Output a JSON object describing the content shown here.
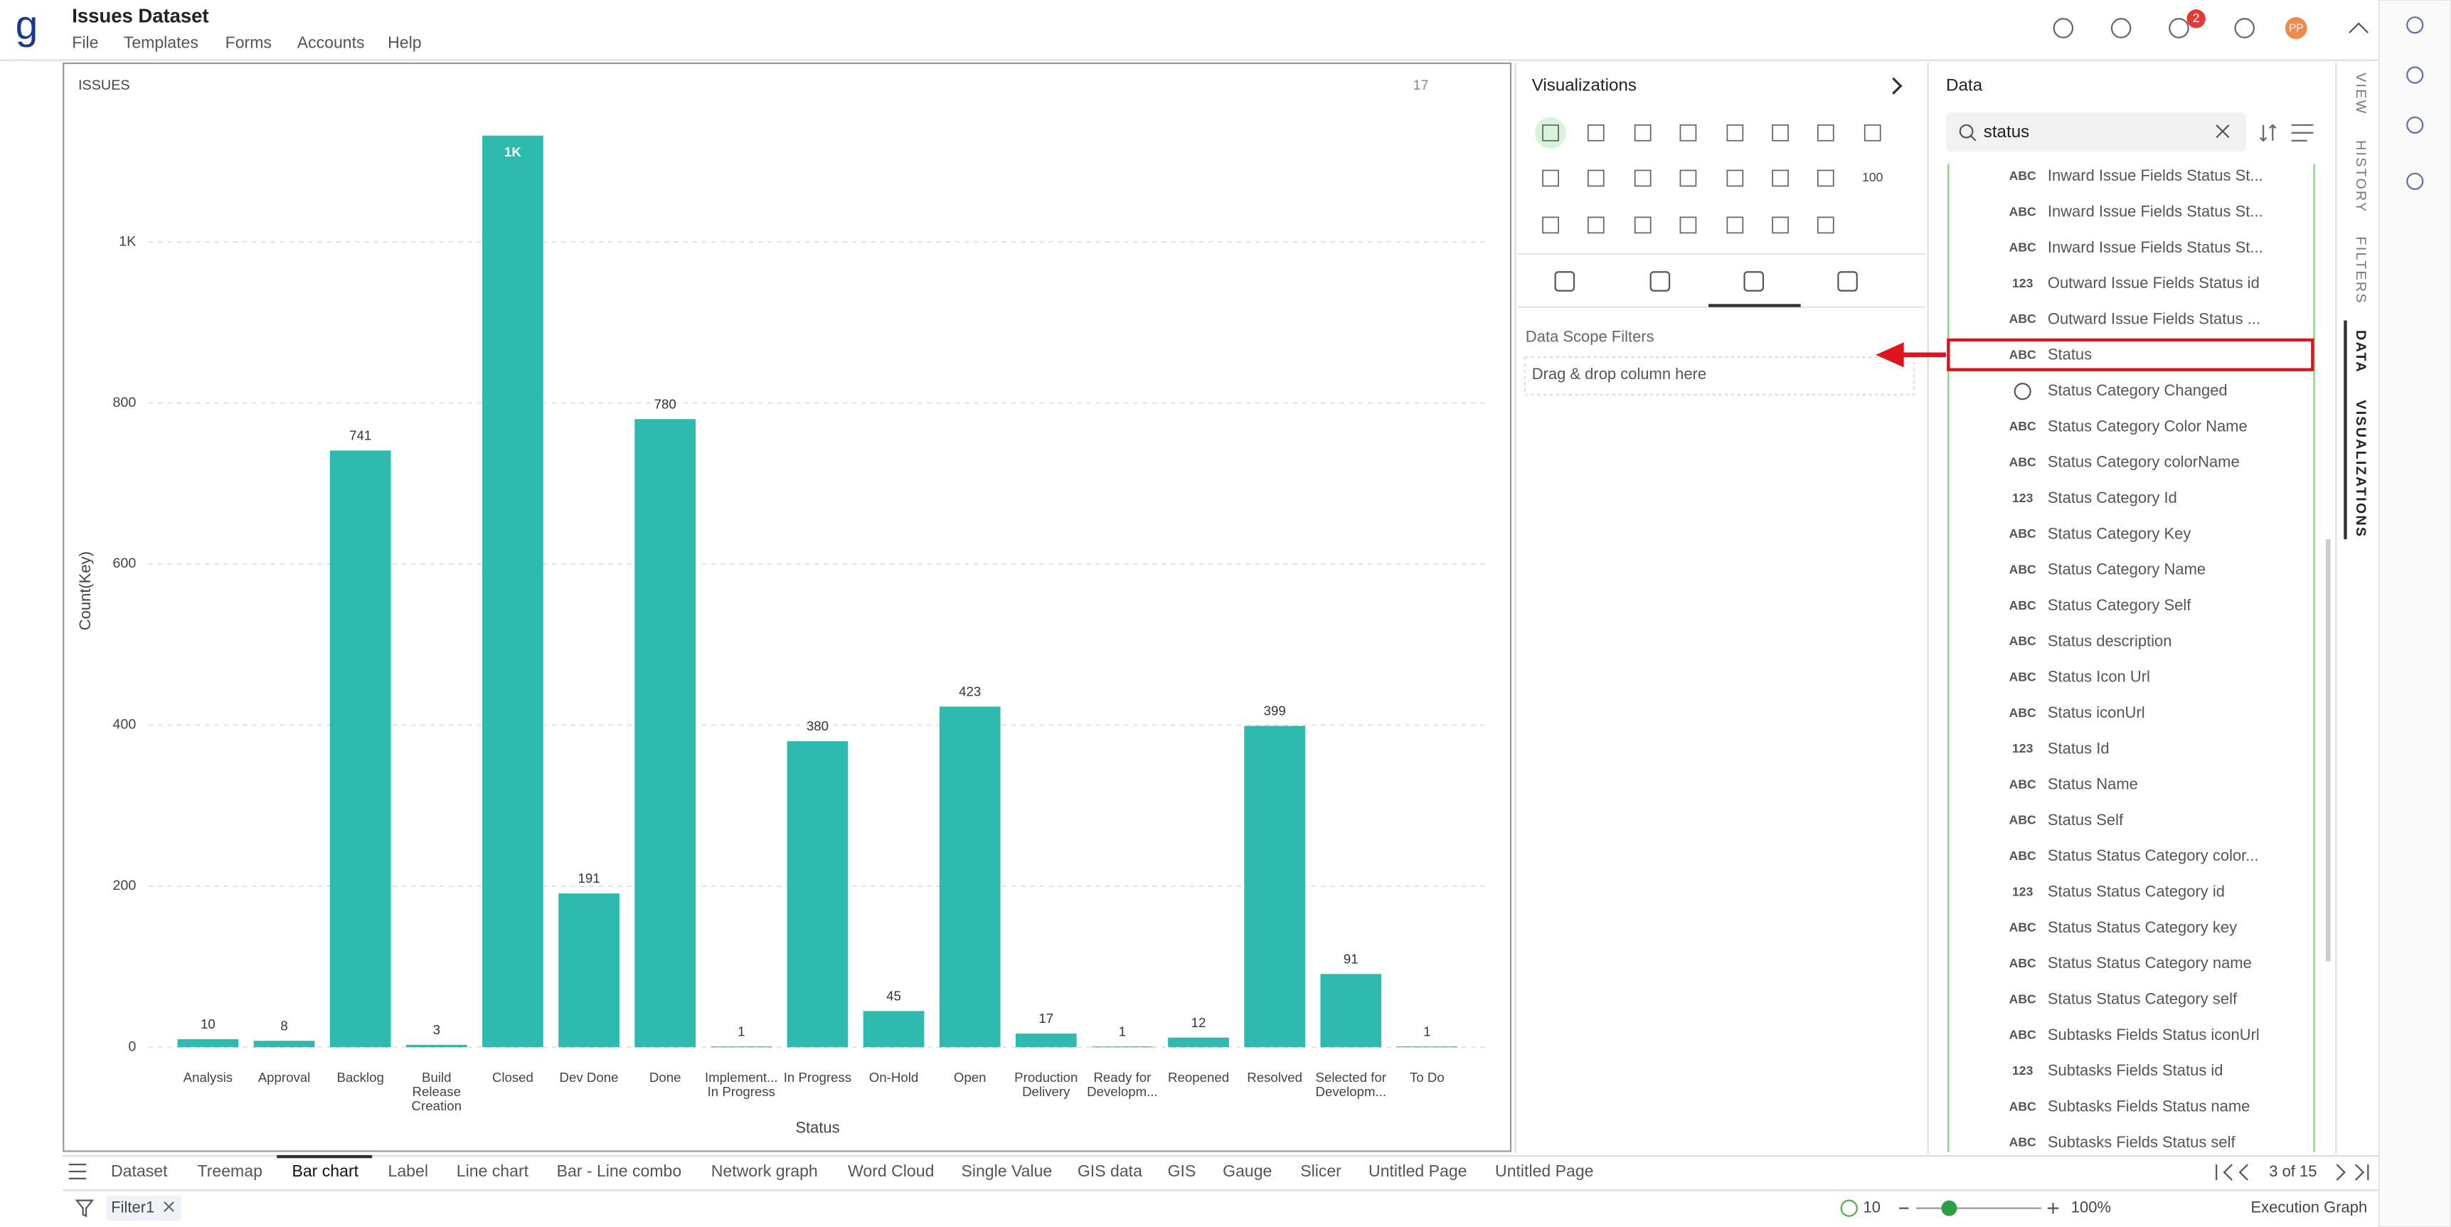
{
  "app": {
    "logo": "g",
    "title": "Issues Dataset",
    "menu": [
      "File",
      "Templates",
      "Forms",
      "Accounts",
      "Help"
    ],
    "notification_count": "2",
    "avatar": "PP"
  },
  "chart_panel": {
    "title": "ISSUES",
    "count": "17"
  },
  "chart_data": {
    "type": "bar",
    "x_label": "Status",
    "y_label": "Count(Key)",
    "color": "#2fbab0",
    "categories": [
      "Analysis",
      "Approval",
      "Backlog",
      "Build Release Creation",
      "Closed",
      "Dev Done",
      "Done",
      "Implement... In Progress",
      "In Progress",
      "On-Hold",
      "Open",
      "Production Delivery",
      "Ready for Developm...",
      "Reopened",
      "Resolved",
      "Selected for Developm...",
      "To Do"
    ],
    "values": [
      10,
      8,
      741,
      3,
      1132,
      191,
      780,
      1,
      380,
      45,
      423,
      17,
      1,
      12,
      399,
      91,
      1
    ],
    "value_labels": [
      "10",
      "8",
      "741",
      "3",
      "1K",
      "191",
      "780",
      "1",
      "380",
      "45",
      "423",
      "17",
      "1",
      "12",
      "399",
      "91",
      "1"
    ],
    "ylim": [
      0,
      1150
    ],
    "yticks": [
      0,
      200,
      400,
      600,
      800,
      {
        "value": 1000,
        "label": "1K"
      }
    ],
    "grid": true
  },
  "visualizations": {
    "title": "Visualizations",
    "icon_label": "100",
    "filter_title": "Data Scope Filters",
    "drop_hint": "Drag & drop column here"
  },
  "data_panel": {
    "title": "Data",
    "search": "status",
    "selected": 5,
    "fields": [
      {
        "type": "ABC",
        "name": "Inward Issue Fields Status St..."
      },
      {
        "type": "ABC",
        "name": "Inward Issue Fields Status St..."
      },
      {
        "type": "ABC",
        "name": "Inward Issue Fields Status St..."
      },
      {
        "type": "123",
        "name": "Outward Issue Fields Status id"
      },
      {
        "type": "ABC",
        "name": "Outward Issue Fields Status ..."
      },
      {
        "type": "ABC",
        "name": "Status"
      },
      {
        "type": "clock",
        "name": "Status Category Changed"
      },
      {
        "type": "ABC",
        "name": "Status Category Color Name"
      },
      {
        "type": "ABC",
        "name": "Status Category colorName"
      },
      {
        "type": "123",
        "name": "Status Category Id"
      },
      {
        "type": "ABC",
        "name": "Status Category Key"
      },
      {
        "type": "ABC",
        "name": "Status Category Name"
      },
      {
        "type": "ABC",
        "name": "Status Category Self"
      },
      {
        "type": "ABC",
        "name": "Status description"
      },
      {
        "type": "ABC",
        "name": "Status Icon Url"
      },
      {
        "type": "ABC",
        "name": "Status iconUrl"
      },
      {
        "type": "123",
        "name": "Status Id"
      },
      {
        "type": "ABC",
        "name": "Status Name"
      },
      {
        "type": "ABC",
        "name": "Status Self"
      },
      {
        "type": "ABC",
        "name": "Status Status Category color..."
      },
      {
        "type": "123",
        "name": "Status Status Category id"
      },
      {
        "type": "ABC",
        "name": "Status Status Category key"
      },
      {
        "type": "ABC",
        "name": "Status Status Category name"
      },
      {
        "type": "ABC",
        "name": "Status Status Category self"
      },
      {
        "type": "ABC",
        "name": "Subtasks Fields Status iconUrl"
      },
      {
        "type": "123",
        "name": "Subtasks Fields Status id"
      },
      {
        "type": "ABC",
        "name": "Subtasks Fields Status name"
      },
      {
        "type": "ABC",
        "name": "Subtasks Fields Status self"
      }
    ]
  },
  "side_tabs": [
    "VIEW",
    "HISTORY",
    "FILTERS",
    "DATA",
    "VISUALIZATIONS"
  ],
  "page_tabs": {
    "tabs": [
      "Dataset",
      "Treemap",
      "Bar chart",
      "Label",
      "Line chart",
      "Bar - Line combo",
      "Network graph",
      "Word Cloud",
      "Single Value",
      "GIS data",
      "GIS",
      "Gauge",
      "Slicer",
      "Untitled Page",
      "Untitled Page"
    ],
    "active": 2,
    "pagination": "3 of 15"
  },
  "status_bar": {
    "filter": "Filter1",
    "check_count": "10",
    "zoom": "100%",
    "execution": "Execution Graph"
  }
}
